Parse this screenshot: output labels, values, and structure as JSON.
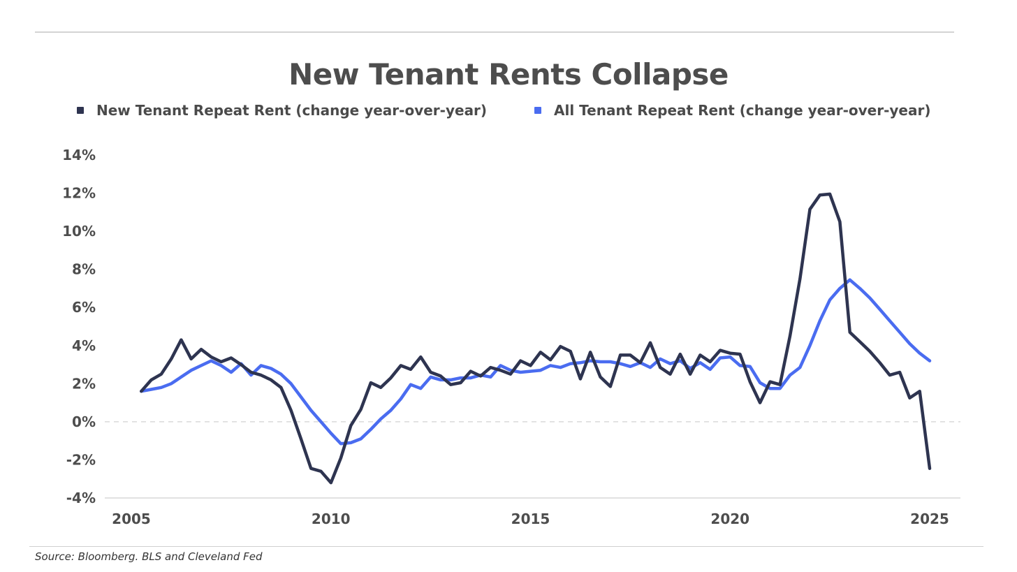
{
  "chart_data": {
    "type": "line",
    "title": "New Tenant Rents Collapse",
    "xlabel": "",
    "ylabel": "",
    "xlim": [
      2005,
      2025
    ],
    "ylim": [
      -4,
      14
    ],
    "x_ticks": [
      "2005",
      "2010",
      "2015",
      "2020",
      "2025"
    ],
    "y_ticks": [
      "-4%",
      "-2%",
      "0%",
      "2%",
      "4%",
      "6%",
      "8%",
      "10%",
      "12%",
      "14%"
    ],
    "legend_position": "top",
    "zero_line": "dashed",
    "series": [
      {
        "name": "New Tenant Repeat Rent (change year-over-year)",
        "color": "#2e3450",
        "points": [
          [
            2005.25,
            1.6
          ],
          [
            2005.5,
            2.2
          ],
          [
            2005.75,
            2.5
          ],
          [
            2006.0,
            3.3
          ],
          [
            2006.25,
            4.3
          ],
          [
            2006.5,
            3.3
          ],
          [
            2006.75,
            3.8
          ],
          [
            2007.0,
            3.4
          ],
          [
            2007.25,
            3.15
          ],
          [
            2007.5,
            3.35
          ],
          [
            2007.75,
            3.0
          ],
          [
            2008.0,
            2.6
          ],
          [
            2008.25,
            2.45
          ],
          [
            2008.5,
            2.2
          ],
          [
            2008.75,
            1.8
          ],
          [
            2009.0,
            0.6
          ],
          [
            2009.25,
            -0.9
          ],
          [
            2009.5,
            -2.45
          ],
          [
            2009.75,
            -2.6
          ],
          [
            2010.0,
            -3.2
          ],
          [
            2010.25,
            -1.9
          ],
          [
            2010.5,
            -0.2
          ],
          [
            2010.75,
            0.65
          ],
          [
            2011.0,
            2.05
          ],
          [
            2011.25,
            1.8
          ],
          [
            2011.5,
            2.3
          ],
          [
            2011.75,
            2.95
          ],
          [
            2012.0,
            2.75
          ],
          [
            2012.25,
            3.4
          ],
          [
            2012.5,
            2.6
          ],
          [
            2012.75,
            2.4
          ],
          [
            2013.0,
            1.95
          ],
          [
            2013.25,
            2.05
          ],
          [
            2013.5,
            2.65
          ],
          [
            2013.75,
            2.4
          ],
          [
            2014.0,
            2.85
          ],
          [
            2014.25,
            2.7
          ],
          [
            2014.5,
            2.5
          ],
          [
            2014.75,
            3.2
          ],
          [
            2015.0,
            2.95
          ],
          [
            2015.25,
            3.65
          ],
          [
            2015.5,
            3.25
          ],
          [
            2015.75,
            3.95
          ],
          [
            2016.0,
            3.7
          ],
          [
            2016.25,
            2.25
          ],
          [
            2016.5,
            3.65
          ],
          [
            2016.75,
            2.35
          ],
          [
            2017.0,
            1.85
          ],
          [
            2017.25,
            3.5
          ],
          [
            2017.5,
            3.5
          ],
          [
            2017.75,
            3.1
          ],
          [
            2018.0,
            4.15
          ],
          [
            2018.25,
            2.85
          ],
          [
            2018.5,
            2.5
          ],
          [
            2018.75,
            3.55
          ],
          [
            2019.0,
            2.5
          ],
          [
            2019.25,
            3.5
          ],
          [
            2019.5,
            3.15
          ],
          [
            2019.75,
            3.75
          ],
          [
            2020.0,
            3.6
          ],
          [
            2020.25,
            3.55
          ],
          [
            2020.5,
            2.1
          ],
          [
            2020.75,
            1.0
          ],
          [
            2021.0,
            2.1
          ],
          [
            2021.25,
            1.95
          ],
          [
            2021.5,
            4.5
          ],
          [
            2021.75,
            7.5
          ],
          [
            2022.0,
            11.15
          ],
          [
            2022.25,
            11.9
          ],
          [
            2022.5,
            11.95
          ],
          [
            2022.75,
            10.5
          ],
          [
            2023.0,
            4.7
          ],
          [
            2023.25,
            4.2
          ],
          [
            2023.5,
            3.7
          ],
          [
            2023.75,
            3.1
          ],
          [
            2024.0,
            2.45
          ],
          [
            2024.25,
            2.6
          ],
          [
            2024.5,
            1.25
          ],
          [
            2024.75,
            1.6
          ],
          [
            2025.0,
            -2.45
          ]
        ]
      },
      {
        "name": "All Tenant Repeat Rent (change year-over-year)",
        "color": "#4a6cf0",
        "points": [
          [
            2005.25,
            1.6
          ],
          [
            2005.5,
            1.7
          ],
          [
            2005.75,
            1.8
          ],
          [
            2006.0,
            2.0
          ],
          [
            2006.25,
            2.35
          ],
          [
            2006.5,
            2.7
          ],
          [
            2006.75,
            2.95
          ],
          [
            2007.0,
            3.2
          ],
          [
            2007.25,
            2.95
          ],
          [
            2007.5,
            2.6
          ],
          [
            2007.75,
            3.05
          ],
          [
            2008.0,
            2.45
          ],
          [
            2008.25,
            2.95
          ],
          [
            2008.5,
            2.8
          ],
          [
            2008.75,
            2.5
          ],
          [
            2009.0,
            2.0
          ],
          [
            2009.25,
            1.3
          ],
          [
            2009.5,
            0.6
          ],
          [
            2009.75,
            0.0
          ],
          [
            2010.0,
            -0.6
          ],
          [
            2010.25,
            -1.15
          ],
          [
            2010.5,
            -1.1
          ],
          [
            2010.75,
            -0.9
          ],
          [
            2011.0,
            -0.4
          ],
          [
            2011.25,
            0.15
          ],
          [
            2011.5,
            0.6
          ],
          [
            2011.75,
            1.2
          ],
          [
            2012.0,
            1.95
          ],
          [
            2012.25,
            1.75
          ],
          [
            2012.5,
            2.35
          ],
          [
            2012.75,
            2.2
          ],
          [
            2013.0,
            2.2
          ],
          [
            2013.25,
            2.3
          ],
          [
            2013.5,
            2.3
          ],
          [
            2013.75,
            2.45
          ],
          [
            2014.0,
            2.35
          ],
          [
            2014.25,
            2.95
          ],
          [
            2014.5,
            2.7
          ],
          [
            2014.75,
            2.6
          ],
          [
            2015.0,
            2.65
          ],
          [
            2015.25,
            2.7
          ],
          [
            2015.5,
            2.95
          ],
          [
            2015.75,
            2.85
          ],
          [
            2016.0,
            3.05
          ],
          [
            2016.25,
            3.1
          ],
          [
            2016.5,
            3.2
          ],
          [
            2016.75,
            3.15
          ],
          [
            2017.0,
            3.15
          ],
          [
            2017.25,
            3.05
          ],
          [
            2017.5,
            2.9
          ],
          [
            2017.75,
            3.1
          ],
          [
            2018.0,
            2.85
          ],
          [
            2018.25,
            3.3
          ],
          [
            2018.5,
            3.05
          ],
          [
            2018.75,
            3.2
          ],
          [
            2019.0,
            2.8
          ],
          [
            2019.25,
            3.1
          ],
          [
            2019.5,
            2.75
          ],
          [
            2019.75,
            3.35
          ],
          [
            2020.0,
            3.4
          ],
          [
            2020.25,
            2.95
          ],
          [
            2020.5,
            2.9
          ],
          [
            2020.75,
            2.05
          ],
          [
            2021.0,
            1.75
          ],
          [
            2021.25,
            1.75
          ],
          [
            2021.5,
            2.45
          ],
          [
            2021.75,
            2.85
          ],
          [
            2022.0,
            4.0
          ],
          [
            2022.25,
            5.3
          ],
          [
            2022.5,
            6.4
          ],
          [
            2022.75,
            7.0
          ],
          [
            2023.0,
            7.45
          ],
          [
            2023.25,
            7.0
          ],
          [
            2023.5,
            6.5
          ],
          [
            2023.75,
            5.9
          ],
          [
            2024.0,
            5.3
          ],
          [
            2024.25,
            4.7
          ],
          [
            2024.5,
            4.1
          ],
          [
            2024.75,
            3.6
          ],
          [
            2025.0,
            3.2
          ]
        ]
      }
    ]
  },
  "source": "Source: Bloomberg. BLS and Cleveland Fed"
}
